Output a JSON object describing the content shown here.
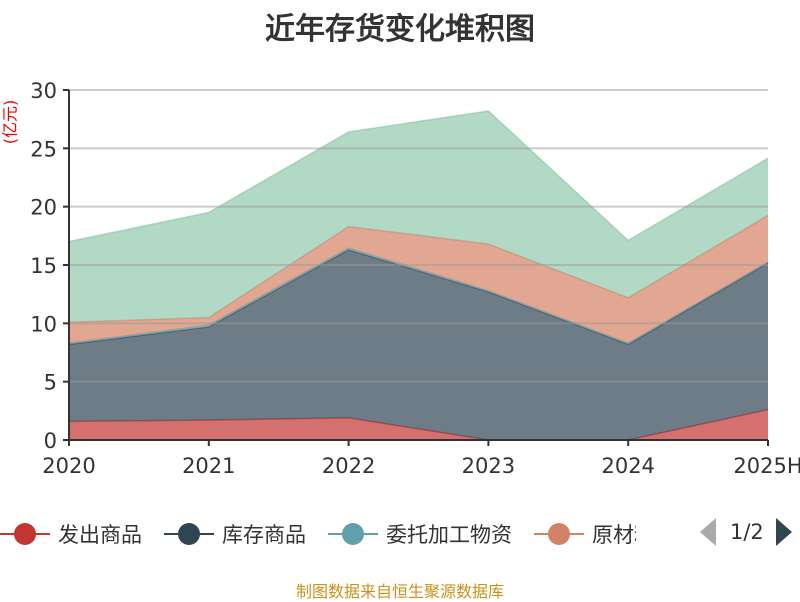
{
  "chart_data": {
    "type": "area",
    "stacked": true,
    "title": "近年存货变化堆积图",
    "ylabel": "(亿元)",
    "xlabel": "",
    "categories": [
      "2020",
      "2021",
      "2022",
      "2023",
      "2024",
      "2025H"
    ],
    "ylim": [
      0,
      30
    ],
    "yticks": [
      0,
      5,
      10,
      15,
      20,
      25,
      30
    ],
    "grid": true,
    "legend_position": "bottom",
    "legend_page": "1/2",
    "series": [
      {
        "name": "发出商品",
        "color": "#c23531",
        "values": [
          1.6,
          1.7,
          1.9,
          0,
          0,
          2.6
        ]
      },
      {
        "name": "库存商品",
        "color": "#2f4554",
        "values": [
          6.6,
          8.0,
          14.4,
          12.7,
          8.2,
          12.6
        ]
      },
      {
        "name": "委托加工物资",
        "color": "#61a0a8",
        "values": [
          0.1,
          0.15,
          0.15,
          0.1,
          0.1,
          0.05
        ]
      },
      {
        "name": "原材料",
        "color": "#d48265",
        "values": [
          1.8,
          0.65,
          1.85,
          4.0,
          3.9,
          4.0
        ]
      },
      {
        "color": "#91c7ae",
        "values": [
          6.9,
          9.0,
          8.1,
          11.4,
          4.9,
          4.9
        ]
      }
    ]
  },
  "footer": "制图数据来自恒生聚源数据库"
}
